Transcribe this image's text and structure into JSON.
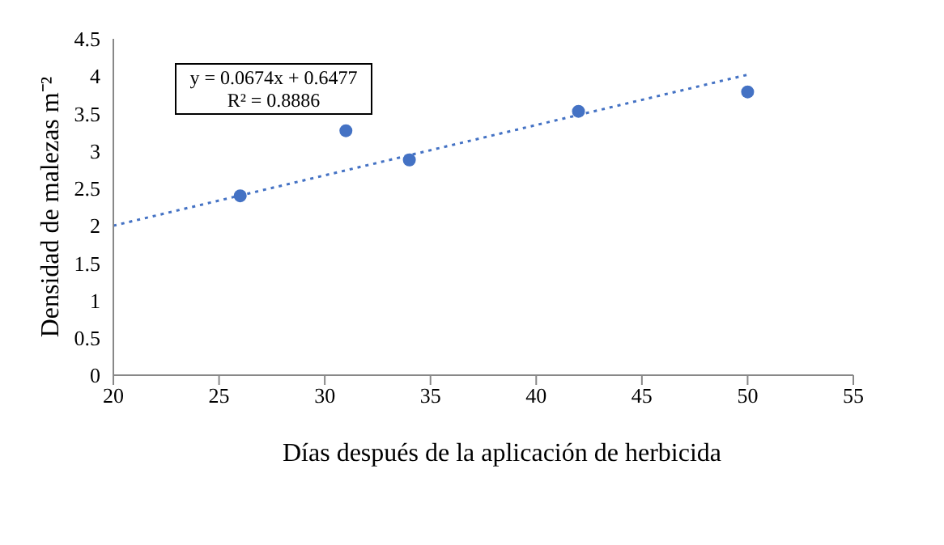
{
  "chart_data": {
    "type": "scatter",
    "xlabel": "Días después de la aplicación de herbicida",
    "ylabel": "Densidad de malezas m⁻²",
    "annotations": [
      "y = 0.0674x + 0.6477",
      "R² = 0.8886"
    ],
    "xlim": [
      20,
      55
    ],
    "xticks": [
      20,
      25,
      30,
      35,
      40,
      45,
      50,
      55
    ],
    "ylim": [
      0,
      4.5
    ],
    "yticks": [
      0,
      0.5,
      1,
      1.5,
      2,
      2.5,
      3,
      3.5,
      4,
      4.5
    ],
    "grid": false,
    "legend": false,
    "series": [
      {
        "color": "#4472c4",
        "marker": "circle",
        "x": [
          26,
          31,
          34,
          42,
          50
        ],
        "values": [
          2.4,
          3.27,
          2.88,
          3.53,
          3.79
        ]
      },
      {
        "type": "line",
        "color": "#4472c4",
        "line_style": "dotted",
        "marker": "none",
        "x": [
          20,
          50
        ],
        "values": [
          2.0,
          4.02
        ]
      }
    ]
  }
}
